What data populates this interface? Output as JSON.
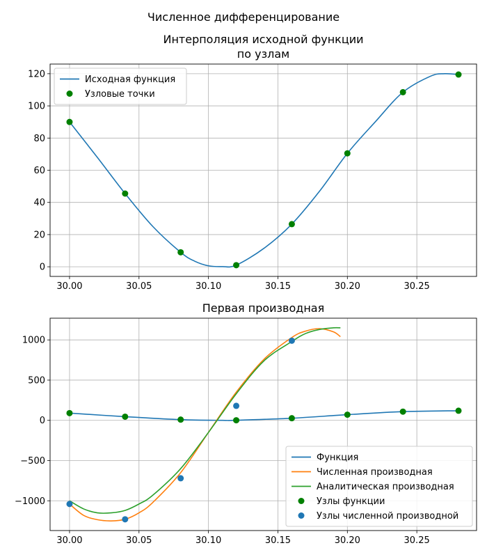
{
  "figure": {
    "suptitle": "Численное дифференцирование"
  },
  "colors": {
    "blue": "#1f77b4",
    "orange": "#ff7f0e",
    "green_line": "#2ca02c",
    "green_pts": "#008000",
    "grid": "#b0b0b0"
  },
  "chart_data": [
    {
      "type": "line",
      "title_lines": [
        "Интерполяция исходной функции",
        "по узлам"
      ],
      "xlabel": "",
      "ylabel": "",
      "xlim": [
        29.986,
        30.293
      ],
      "ylim": [
        -6,
        126
      ],
      "xticks": [
        30.0,
        30.05,
        30.1,
        30.15,
        30.2,
        30.25
      ],
      "xtick_labels": [
        "30.00",
        "30.05",
        "30.10",
        "30.15",
        "30.20",
        "30.25"
      ],
      "yticks": [
        0,
        20,
        40,
        60,
        80,
        100,
        120
      ],
      "ytick_labels": [
        "0",
        "20",
        "40",
        "60",
        "80",
        "100",
        "120"
      ],
      "grid": true,
      "legend_position": "top-left",
      "series": [
        {
          "name": "Исходная функция",
          "kind": "line",
          "color": "#1f77b4",
          "x": [
            30.0,
            30.02,
            30.04,
            30.06,
            30.08,
            30.09,
            30.1,
            30.11,
            30.12,
            30.14,
            30.16,
            30.18,
            30.2,
            30.22,
            30.24,
            30.26,
            30.27,
            30.28
          ],
          "y": [
            90,
            68,
            45.5,
            25,
            9,
            3.5,
            0.6,
            0.1,
            1,
            11.5,
            26.5,
            47,
            70.5,
            90,
            108.5,
            118.5,
            120,
            119.5
          ]
        },
        {
          "name": "Узловые точки",
          "kind": "scatter",
          "color": "#008000",
          "x": [
            30.0,
            30.04,
            30.08,
            30.12,
            30.16,
            30.2,
            30.24,
            30.28
          ],
          "y": [
            90,
            45.5,
            9,
            1,
            26.5,
            70.5,
            108.5,
            119.5
          ]
        }
      ]
    },
    {
      "type": "line",
      "title_lines": [
        "Первая производная"
      ],
      "xlabel": "",
      "ylabel": "",
      "xlim": [
        29.986,
        30.293
      ],
      "ylim": [
        -1370,
        1270
      ],
      "xticks": [
        30.0,
        30.05,
        30.1,
        30.15,
        30.2,
        30.25
      ],
      "xtick_labels": [
        "30.00",
        "30.05",
        "30.10",
        "30.15",
        "30.20",
        "30.25"
      ],
      "yticks": [
        -1000,
        -500,
        0,
        500,
        1000
      ],
      "ytick_labels": [
        "−1000",
        "−500",
        "0",
        "500",
        "1000"
      ],
      "grid": true,
      "legend_position": "bottom-right",
      "series": [
        {
          "name": "Функция",
          "kind": "line",
          "color": "#1f77b4",
          "x": [
            30.0,
            30.04,
            30.08,
            30.11,
            30.12,
            30.16,
            30.2,
            30.24,
            30.28
          ],
          "y": [
            90,
            45.5,
            9,
            0.1,
            1,
            26.5,
            70.5,
            108.5,
            119.5
          ]
        },
        {
          "name": "Численная производная",
          "kind": "line",
          "color": "#ff7f0e",
          "x": [
            30.0,
            30.01,
            30.02,
            30.03,
            30.04,
            30.05,
            30.06,
            30.08,
            30.1,
            30.12,
            30.14,
            30.16,
            30.17,
            30.18,
            30.19,
            30.195
          ],
          "y": [
            -1040,
            -1180,
            -1235,
            -1250,
            -1230,
            -1150,
            -1020,
            -650,
            -150,
            350,
            760,
            1030,
            1110,
            1140,
            1100,
            1040
          ]
        },
        {
          "name": "Аналитическая производная",
          "kind": "line",
          "color": "#2ca02c",
          "x": [
            30.0,
            30.01,
            30.02,
            30.03,
            30.04,
            30.05,
            30.06,
            30.08,
            30.1,
            30.12,
            30.14,
            30.16,
            30.17,
            30.18,
            30.19,
            30.195
          ],
          "y": [
            -1000,
            -1100,
            -1150,
            -1150,
            -1120,
            -1040,
            -930,
            -600,
            -150,
            330,
            740,
            980,
            1080,
            1130,
            1150,
            1150
          ]
        },
        {
          "name": "Узлы функции",
          "kind": "scatter",
          "color": "#008000",
          "x": [
            30.0,
            30.04,
            30.08,
            30.12,
            30.16,
            30.2,
            30.24,
            30.28
          ],
          "y": [
            90,
            45.5,
            9,
            1,
            26.5,
            70.5,
            108.5,
            119.5
          ]
        },
        {
          "name": "Узлы численной производной",
          "kind": "scatter",
          "color": "#1f77b4",
          "x": [
            30.0,
            30.04,
            30.08,
            30.12,
            30.16
          ],
          "y": [
            -1040,
            -1230,
            -720,
            180,
            990
          ]
        }
      ]
    }
  ]
}
